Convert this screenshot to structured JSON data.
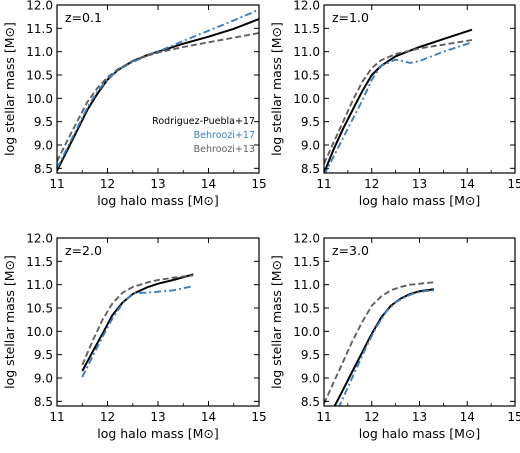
{
  "chart_data": [
    {
      "type": "line",
      "panel_label": "z=0.1",
      "xlabel": "log halo mass [M⊙]",
      "ylabel": "log stellar mass [M⊙]",
      "xlim": [
        11,
        15
      ],
      "ylim": [
        8.4,
        12.0
      ],
      "xticks": [
        "11",
        "12",
        "13",
        "14",
        "15"
      ],
      "yticks": [
        "8.5",
        "9.0",
        "9.5",
        "10.0",
        "10.5",
        "11.0",
        "11.5",
        "12.0"
      ],
      "legend": "bottom-right",
      "series": [
        {
          "name": "Rodriguez-Puebla+17",
          "color": "#000000",
          "style": "solid",
          "x": [
            11.0,
            11.3,
            11.6,
            11.8,
            12.0,
            12.2,
            12.5,
            12.8,
            13.0,
            13.5,
            14.0,
            14.5,
            15.0
          ],
          "y": [
            8.45,
            9.1,
            9.75,
            10.1,
            10.4,
            10.6,
            10.8,
            10.93,
            11.0,
            11.17,
            11.32,
            11.49,
            11.7
          ]
        },
        {
          "name": "Behroozi+17",
          "color": "#3a7fc1",
          "style": "dashdot",
          "x": [
            11.0,
            11.3,
            11.6,
            11.8,
            12.0,
            12.2,
            12.5,
            12.8,
            13.0,
            13.5,
            14.0,
            14.5,
            15.0
          ],
          "y": [
            8.5,
            9.15,
            9.8,
            10.15,
            10.4,
            10.6,
            10.78,
            10.92,
            11.0,
            11.23,
            11.45,
            11.67,
            11.9
          ]
        },
        {
          "name": "Behroozi+13",
          "color": "#606060",
          "style": "dashed",
          "x": [
            11.0,
            11.3,
            11.6,
            11.8,
            12.0,
            12.2,
            12.5,
            12.8,
            13.0,
            13.5,
            14.0,
            14.5,
            15.0
          ],
          "y": [
            8.65,
            9.3,
            9.92,
            10.22,
            10.45,
            10.62,
            10.8,
            10.92,
            10.98,
            11.1,
            11.2,
            11.3,
            11.4
          ]
        }
      ]
    },
    {
      "type": "line",
      "panel_label": "z=1.0",
      "xlabel": "log halo mass [M⊙]",
      "ylabel": "log stellar mass [M⊙]",
      "xlim": [
        11,
        15
      ],
      "ylim": [
        8.4,
        12.0
      ],
      "xticks": [
        "11",
        "12",
        "13",
        "14",
        "15"
      ],
      "yticks": [
        "8.5",
        "9.0",
        "9.5",
        "10.0",
        "10.5",
        "11.0",
        "11.5",
        "12.0"
      ],
      "series": [
        {
          "name": "Rodriguez-Puebla+17",
          "color": "#000000",
          "style": "solid",
          "x": [
            11.0,
            11.2,
            11.4,
            11.6,
            11.8,
            12.0,
            12.2,
            12.5,
            12.8,
            13.0,
            13.5,
            14.1
          ],
          "y": [
            8.4,
            8.9,
            9.35,
            9.75,
            10.15,
            10.5,
            10.7,
            10.9,
            11.02,
            11.1,
            11.27,
            11.47
          ]
        },
        {
          "name": "Behroozi+17",
          "color": "#3a7fc1",
          "style": "dashdot",
          "x": [
            11.0,
            11.2,
            11.4,
            11.6,
            11.8,
            12.0,
            12.2,
            12.5,
            12.8,
            13.0,
            13.5,
            14.1
          ],
          "y": [
            8.35,
            8.75,
            9.15,
            9.55,
            9.95,
            10.4,
            10.7,
            10.83,
            10.76,
            10.8,
            11.0,
            11.2
          ]
        },
        {
          "name": "Behroozi+13",
          "color": "#606060",
          "style": "dashed",
          "x": [
            11.0,
            11.2,
            11.4,
            11.6,
            11.8,
            12.0,
            12.2,
            12.5,
            12.8,
            13.0,
            13.5,
            14.1
          ],
          "y": [
            8.6,
            9.05,
            9.5,
            9.95,
            10.35,
            10.65,
            10.82,
            10.95,
            11.02,
            11.07,
            11.15,
            11.25
          ]
        }
      ]
    },
    {
      "type": "line",
      "panel_label": "z=2.0",
      "xlabel": "log halo mass [M⊙]",
      "ylabel": "log stellar mass [M⊙]",
      "xlim": [
        11,
        15
      ],
      "ylim": [
        8.4,
        12.0
      ],
      "xticks": [
        "11",
        "12",
        "13",
        "14",
        "15"
      ],
      "yticks": [
        "8.5",
        "9.0",
        "9.5",
        "10.0",
        "10.5",
        "11.0",
        "11.5",
        "12.0"
      ],
      "series": [
        {
          "name": "Rodriguez-Puebla+17",
          "color": "#000000",
          "style": "solid",
          "x": [
            11.5,
            11.7,
            11.9,
            12.1,
            12.3,
            12.5,
            12.8,
            13.0,
            13.3,
            13.7
          ],
          "y": [
            9.15,
            9.55,
            9.95,
            10.35,
            10.62,
            10.8,
            10.95,
            11.02,
            11.1,
            11.22
          ]
        },
        {
          "name": "Behroozi+17",
          "color": "#3a7fc1",
          "style": "dashdot",
          "x": [
            11.5,
            11.7,
            11.9,
            12.1,
            12.3,
            12.5,
            12.8,
            13.0,
            13.3,
            13.7
          ],
          "y": [
            9.02,
            9.45,
            9.88,
            10.28,
            10.6,
            10.82,
            10.83,
            10.85,
            10.88,
            10.97
          ]
        },
        {
          "name": "Behroozi+13",
          "color": "#606060",
          "style": "dashed",
          "x": [
            11.5,
            11.7,
            11.9,
            12.1,
            12.3,
            12.5,
            12.8,
            13.0,
            13.3,
            13.7
          ],
          "y": [
            9.28,
            9.78,
            10.25,
            10.6,
            10.83,
            10.95,
            11.05,
            11.1,
            11.15,
            11.2
          ]
        }
      ]
    },
    {
      "type": "line",
      "panel_label": "z=3.0",
      "xlabel": "log halo mass [M⊙]",
      "ylabel": "log stellar mass [M⊙]",
      "xlim": [
        11,
        15
      ],
      "ylim": [
        8.4,
        12.0
      ],
      "xticks": [
        "11",
        "12",
        "13",
        "14",
        "15"
      ],
      "yticks": [
        "8.5",
        "9.0",
        "9.5",
        "10.0",
        "10.5",
        "11.0",
        "11.5",
        "12.0"
      ],
      "series": [
        {
          "name": "Rodriguez-Puebla+17",
          "color": "#000000",
          "style": "solid",
          "x": [
            11.2,
            11.4,
            11.6,
            11.8,
            12.0,
            12.2,
            12.4,
            12.6,
            12.8,
            13.0,
            13.3
          ],
          "y": [
            8.35,
            8.75,
            9.15,
            9.55,
            9.95,
            10.3,
            10.55,
            10.7,
            10.8,
            10.86,
            10.9
          ]
        },
        {
          "name": "Behroozi+17",
          "color": "#3a7fc1",
          "style": "dashdot",
          "x": [
            11.3,
            11.5,
            11.7,
            11.9,
            12.1,
            12.3,
            12.5,
            12.7,
            12.9,
            13.1,
            13.3
          ],
          "y": [
            8.35,
            8.8,
            9.25,
            9.7,
            10.1,
            10.42,
            10.62,
            10.74,
            10.82,
            10.86,
            10.88
          ]
        },
        {
          "name": "Behroozi+13",
          "color": "#606060",
          "style": "dashed",
          "x": [
            11.0,
            11.2,
            11.4,
            11.6,
            11.8,
            12.0,
            12.2,
            12.4,
            12.6,
            12.8,
            13.0,
            13.3
          ],
          "y": [
            8.45,
            8.9,
            9.35,
            9.8,
            10.2,
            10.55,
            10.75,
            10.88,
            10.95,
            11.0,
            11.02,
            11.05
          ]
        }
      ]
    }
  ]
}
